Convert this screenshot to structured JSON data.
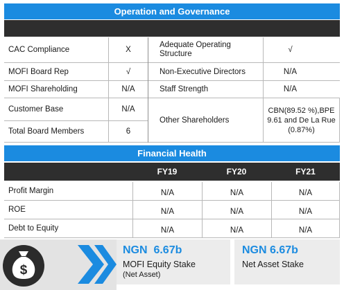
{
  "operation_governance": {
    "title": "Operation and Governance",
    "left": [
      {
        "label": "CAC Compliance",
        "value": "X"
      },
      {
        "label": "MOFI Board Rep",
        "value": "√"
      },
      {
        "label": "MOFI Shareholding",
        "value": "N/A"
      },
      {
        "label": "Customer Base",
        "value": "N/A"
      },
      {
        "label": "Total Board Members",
        "value": "6"
      }
    ],
    "right": [
      {
        "label": "Adequate Operating Structure",
        "value": "√"
      },
      {
        "label": "Non-Executive Directors",
        "value": "N/A"
      },
      {
        "label": "Staff Strength",
        "value": "N/A"
      },
      {
        "label": "Other Shareholders",
        "value": "CBN(89.52 %),BPE 9.61 and De La Rue (0.87%)"
      }
    ]
  },
  "financial_health": {
    "title": "Financial Health",
    "columns": [
      "",
      "FY19",
      "FY20",
      "FY21"
    ],
    "rows": [
      {
        "label": "Profit Margin",
        "values": [
          "N/A",
          "N/A",
          "N/A"
        ]
      },
      {
        "label": "ROE",
        "values": [
          "N/A",
          "N/A",
          "N/A"
        ]
      },
      {
        "label": "Debt to Equity",
        "values": [
          "N/A",
          "N/A",
          "N/A"
        ]
      }
    ]
  },
  "summary": {
    "icon": "money-bag-icon",
    "stake": {
      "amount": "NGN  6.67b",
      "label": "MOFI Equity Stake",
      "sublabel": "(Net Asset)"
    },
    "net_asset": {
      "amount": "NGN 6.67b",
      "label": "Net Asset Stake"
    }
  },
  "colors": {
    "accent": "#1b8be0",
    "header_dark": "#2e2e2e",
    "icon_dark": "#2b2b2b",
    "panel_gray": "#ececec"
  }
}
